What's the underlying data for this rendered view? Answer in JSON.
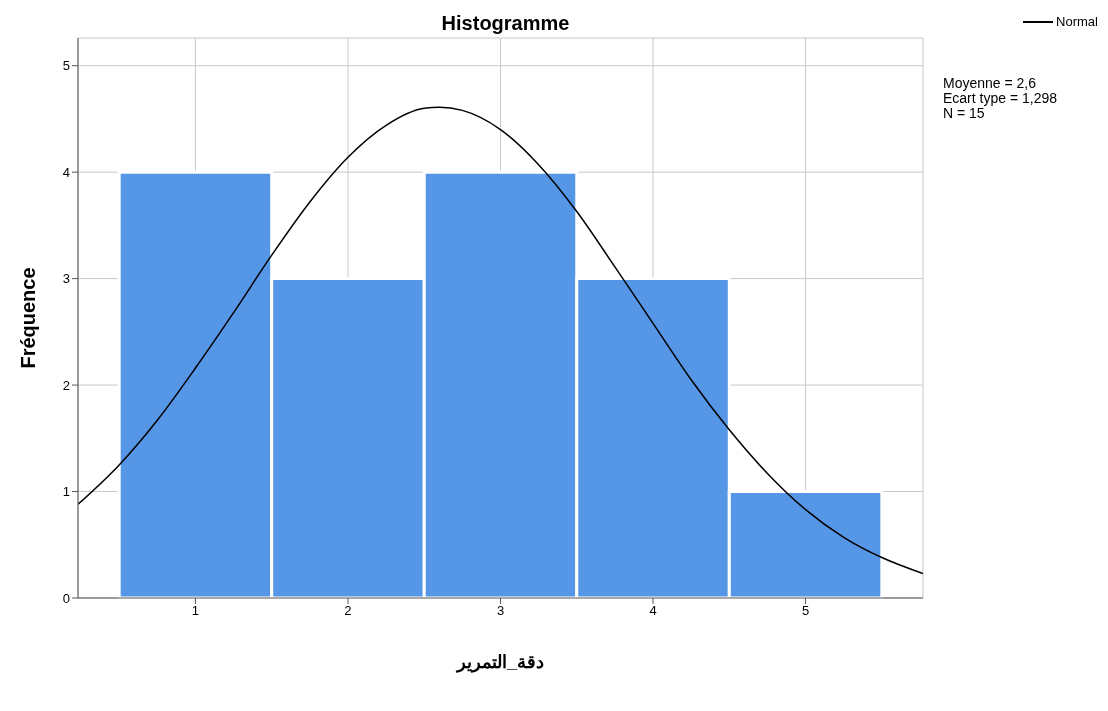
{
  "chart_data": {
    "type": "histogram",
    "title": "Histogramme",
    "xlabel": "دقة_التمرير",
    "ylabel": "Fréquence",
    "bins": [
      0.5,
      1.5,
      2.5,
      3.5,
      4.5,
      5.5
    ],
    "values": [
      4,
      3,
      4,
      3,
      1
    ],
    "color": "#5596e6",
    "series": [
      {
        "name": "Normal",
        "type": "line",
        "color": "#000000",
        "x": [
          0.23,
          0.5,
          0.75,
          1,
          1.25,
          1.5,
          1.75,
          2,
          2.25,
          2.5,
          2.6,
          2.75,
          3,
          3.25,
          3.5,
          3.75,
          4,
          4.25,
          4.5,
          4.75,
          5,
          5.25,
          5.5,
          5.77
        ],
        "values": [
          0.88,
          1.25,
          1.67,
          2.16,
          2.68,
          3.22,
          3.72,
          4.14,
          4.44,
          4.6,
          4.61,
          4.58,
          4.4,
          4.07,
          3.63,
          3.11,
          2.58,
          2.05,
          1.58,
          1.17,
          0.83,
          0.57,
          0.38,
          0.23
        ]
      }
    ],
    "xlim": [
      0.23,
      5.77
    ],
    "xticks": [
      1,
      2,
      3,
      4,
      5
    ],
    "ylim": [
      0,
      5.26
    ],
    "yticks": [
      0,
      1,
      2,
      3,
      4,
      5
    ],
    "grid": true,
    "legend": "top right",
    "annotations": [
      "Moyenne = 2,6",
      "Ecart type = 1,298",
      "N = 15"
    ]
  }
}
